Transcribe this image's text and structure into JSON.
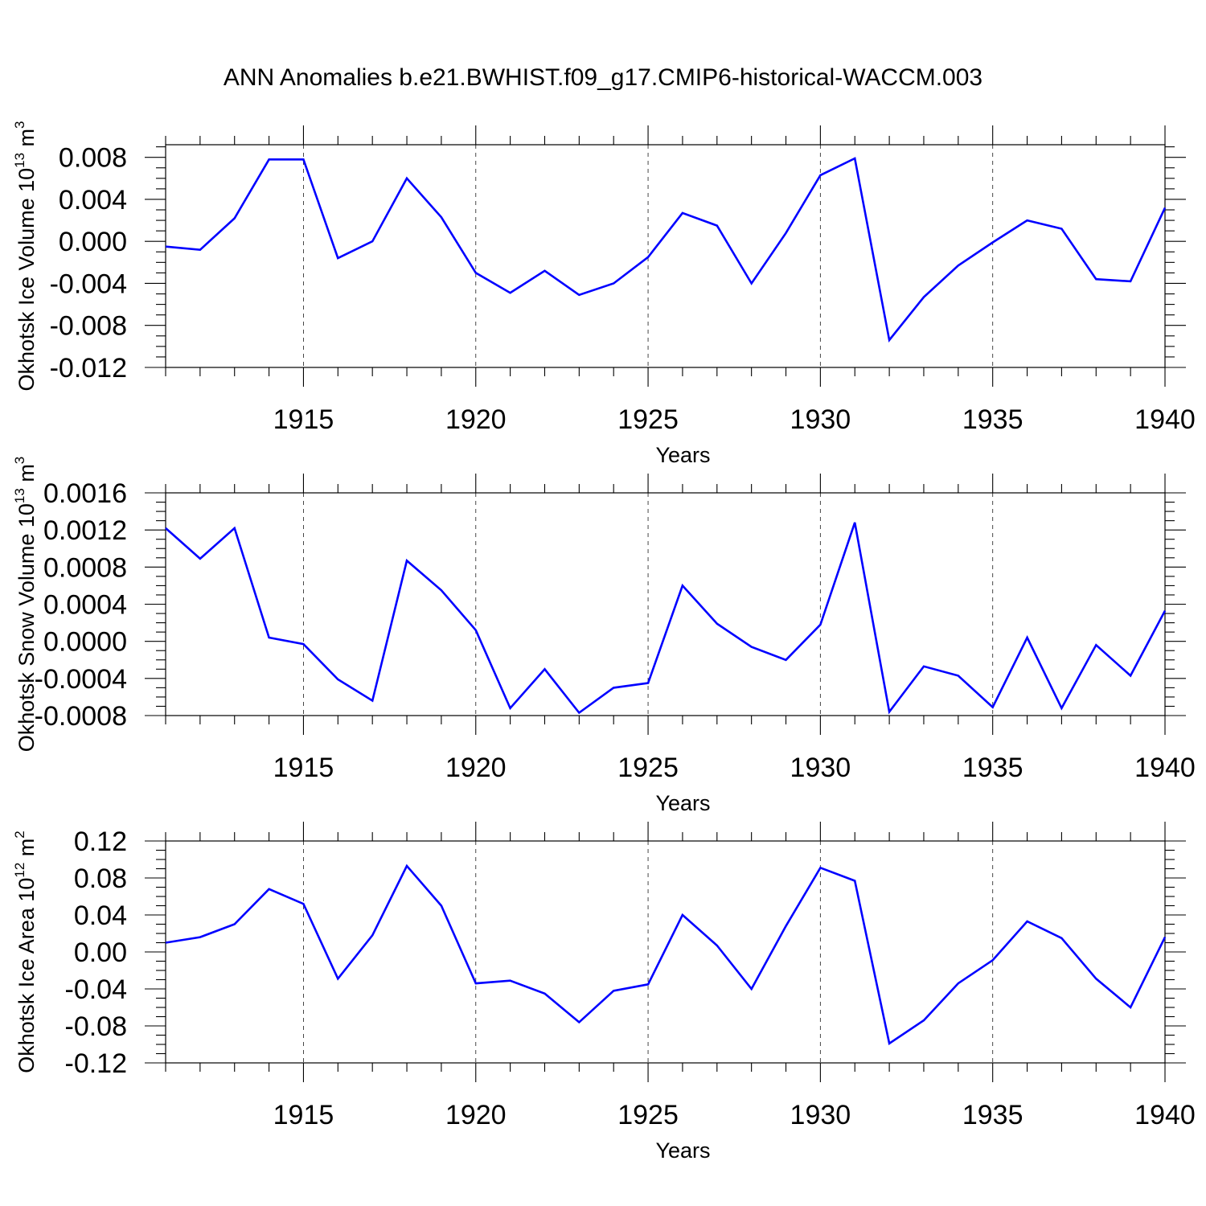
{
  "title": "ANN Anomalies b.e21.BWHIST.f09_g17.CMIP6-historical-WACCM.003",
  "chart_data": [
    {
      "type": "line",
      "ylabel": "Okhotsk Ice Volume 10",
      "ylabel_exp": "13",
      "ylabel_unit": " m",
      "ylabel_unit_exp": "3",
      "xlabel": "Years",
      "xlim": [
        1911,
        1940
      ],
      "ylim": [
        -0.012,
        0.0092
      ],
      "xticks": [
        "1915",
        "1920",
        "1925",
        "1930",
        "1935",
        "1940"
      ],
      "yticks": [
        "0.008",
        "0.004",
        "0.000",
        "-0.004",
        "-0.008",
        "-0.012"
      ],
      "grid": "dashed vertical lines at major x ticks",
      "line_color": "#0000ff",
      "series": [
        {
          "x": [
            1911,
            1912,
            1913,
            1914,
            1915,
            1916,
            1917,
            1918,
            1919,
            1920,
            1921,
            1922,
            1923,
            1924,
            1925,
            1926,
            1927,
            1928,
            1929,
            1930,
            1931,
            1932,
            1933,
            1934,
            1935,
            1936,
            1937,
            1938,
            1939,
            1940
          ],
          "values": [
            -0.0005,
            -0.0008,
            0.0022,
            0.0078,
            0.0078,
            -0.0016,
            0.0,
            0.006,
            0.0023,
            -0.003,
            -0.0049,
            -0.0028,
            -0.0051,
            -0.004,
            -0.0015,
            0.0027,
            0.0015,
            -0.004,
            0.0008,
            0.0063,
            0.0079,
            -0.0094,
            -0.0053,
            -0.0023,
            -0.0001,
            0.002,
            0.0012,
            -0.0036,
            -0.0038,
            0.0032
          ]
        }
      ]
    },
    {
      "type": "line",
      "ylabel": "Okhotsk Snow Volume 10",
      "ylabel_exp": "13",
      "ylabel_unit": " m",
      "ylabel_unit_exp": "3",
      "xlabel": "Years",
      "xlim": [
        1911,
        1940
      ],
      "ylim": [
        -0.0008,
        0.0016
      ],
      "xticks": [
        "1915",
        "1920",
        "1925",
        "1930",
        "1935",
        "1940"
      ],
      "yticks": [
        "0.0016",
        "0.0012",
        "0.0008",
        "0.0004",
        "0.0000",
        "-0.0004",
        "-0.0008"
      ],
      "grid": "dashed vertical lines at major x ticks",
      "line_color": "#0000ff",
      "series": [
        {
          "x": [
            1911,
            1912,
            1913,
            1914,
            1915,
            1916,
            1917,
            1918,
            1919,
            1920,
            1921,
            1922,
            1923,
            1924,
            1925,
            1926,
            1927,
            1928,
            1929,
            1930,
            1931,
            1932,
            1933,
            1934,
            1935,
            1936,
            1937,
            1938,
            1939,
            1940
          ],
          "values": [
            0.00122,
            0.00089,
            0.00122,
            4e-05,
            -3e-05,
            -0.00041,
            -0.00064,
            0.00087,
            0.00055,
            0.00012,
            -0.00072,
            -0.0003,
            -0.00077,
            -0.0005,
            -0.00045,
            0.0006,
            0.00019,
            -6e-05,
            -0.0002,
            0.00018,
            0.00128,
            -0.00076,
            -0.00027,
            -0.00037,
            -0.00071,
            4e-05,
            -0.00072,
            -4e-05,
            -0.00037,
            0.00033
          ]
        }
      ]
    },
    {
      "type": "line",
      "ylabel": "Okhotsk Ice Area 10",
      "ylabel_exp": "12",
      "ylabel_unit": " m",
      "ylabel_unit_exp": "2",
      "xlabel": "Years",
      "xlim": [
        1911,
        1940
      ],
      "ylim": [
        -0.12,
        0.12
      ],
      "xticks": [
        "1915",
        "1920",
        "1925",
        "1930",
        "1935",
        "1940"
      ],
      "yticks": [
        "0.12",
        "0.08",
        "0.04",
        "0.00",
        "-0.04",
        "-0.08",
        "-0.12"
      ],
      "grid": "dashed vertical lines at major x ticks",
      "line_color": "#0000ff",
      "series": [
        {
          "x": [
            1911,
            1912,
            1913,
            1914,
            1915,
            1916,
            1917,
            1918,
            1919,
            1920,
            1921,
            1922,
            1923,
            1924,
            1925,
            1926,
            1927,
            1928,
            1929,
            1930,
            1931,
            1932,
            1933,
            1934,
            1935,
            1936,
            1937,
            1938,
            1939,
            1940
          ],
          "values": [
            0.01,
            0.016,
            0.03,
            0.068,
            0.052,
            -0.029,
            0.018,
            0.093,
            0.05,
            -0.034,
            -0.031,
            -0.045,
            -0.076,
            -0.042,
            -0.035,
            0.04,
            0.007,
            -0.04,
            0.028,
            0.091,
            0.077,
            -0.099,
            -0.074,
            -0.034,
            -0.009,
            0.033,
            0.015,
            -0.029,
            -0.06,
            0.016
          ]
        }
      ]
    }
  ]
}
